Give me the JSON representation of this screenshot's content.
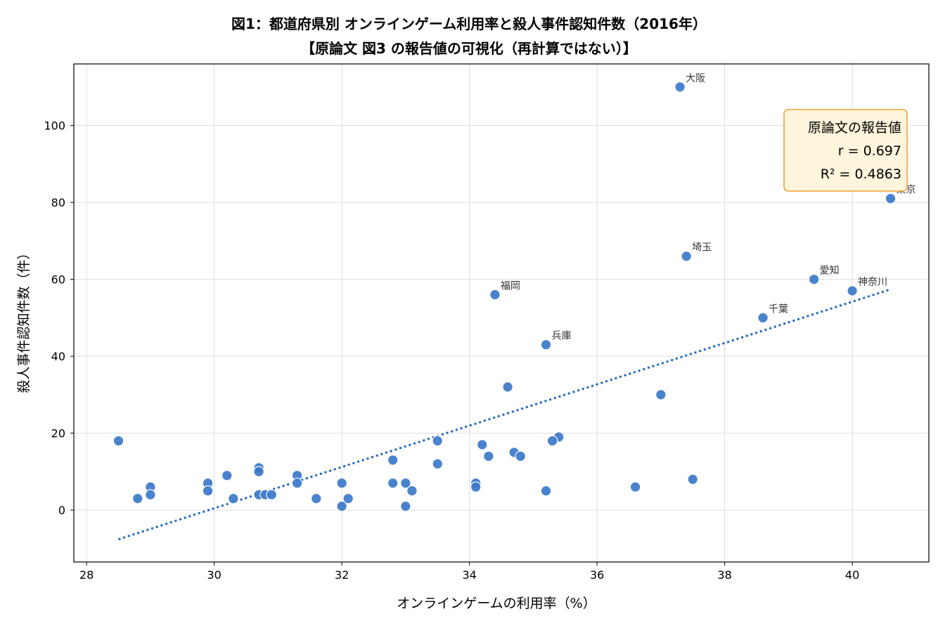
{
  "chart_data": {
    "type": "scatter",
    "title": "図1：都道府県別 オンラインゲーム利用率と殺人事件認知件数（2016年）",
    "subtitle": "【原論文 図3 の報告値の可視化（再計算ではない）】",
    "xlabel": "オンラインゲームの利用率（%）",
    "ylabel": "殺人事件認知件数（件）",
    "xlim": [
      27.8,
      41.2
    ],
    "ylim": [
      -13.5,
      116
    ],
    "xticks": [
      28,
      30,
      32,
      34,
      36,
      38,
      40
    ],
    "yticks": [
      0,
      20,
      40,
      60,
      80,
      100
    ],
    "grid": true,
    "point_color": "#3b78c9",
    "trend_color": "#1f66c1",
    "trendline": {
      "style": "dotted",
      "x": [
        28.5,
        40.6
      ],
      "y": [
        -7.6,
        57.4
      ]
    },
    "stats_box": {
      "lines": [
        "原論文の報告値",
        "r = 0.697",
        "R² = 0.4863"
      ],
      "placement": "top-right",
      "fill": "#fff5dc",
      "border": "#f0a030"
    },
    "points": [
      {
        "x": 37.3,
        "y": 110,
        "label": "大阪"
      },
      {
        "x": 40.6,
        "y": 81,
        "label": "東京"
      },
      {
        "x": 37.4,
        "y": 66,
        "label": "埼玉"
      },
      {
        "x": 39.4,
        "y": 60,
        "label": "愛知"
      },
      {
        "x": 40.0,
        "y": 57,
        "label": "神奈川"
      },
      {
        "x": 34.4,
        "y": 56,
        "label": "福岡"
      },
      {
        "x": 38.6,
        "y": 50,
        "label": "千葉"
      },
      {
        "x": 35.2,
        "y": 43,
        "label": "兵庫"
      },
      {
        "x": 34.6,
        "y": 32
      },
      {
        "x": 37.0,
        "y": 30
      },
      {
        "x": 35.4,
        "y": 19
      },
      {
        "x": 35.3,
        "y": 18
      },
      {
        "x": 33.5,
        "y": 18
      },
      {
        "x": 28.5,
        "y": 18
      },
      {
        "x": 34.2,
        "y": 17
      },
      {
        "x": 34.7,
        "y": 15
      },
      {
        "x": 34.3,
        "y": 14
      },
      {
        "x": 34.8,
        "y": 14
      },
      {
        "x": 32.8,
        "y": 13
      },
      {
        "x": 33.5,
        "y": 12
      },
      {
        "x": 30.7,
        "y": 11
      },
      {
        "x": 30.7,
        "y": 10
      },
      {
        "x": 30.2,
        "y": 9
      },
      {
        "x": 31.3,
        "y": 9
      },
      {
        "x": 37.5,
        "y": 8
      },
      {
        "x": 29.9,
        "y": 7
      },
      {
        "x": 31.3,
        "y": 7
      },
      {
        "x": 32.0,
        "y": 7
      },
      {
        "x": 32.8,
        "y": 7
      },
      {
        "x": 33.0,
        "y": 7
      },
      {
        "x": 34.1,
        "y": 7
      },
      {
        "x": 29.0,
        "y": 6
      },
      {
        "x": 34.1,
        "y": 6
      },
      {
        "x": 36.6,
        "y": 6
      },
      {
        "x": 29.9,
        "y": 5
      },
      {
        "x": 33.1,
        "y": 5
      },
      {
        "x": 35.2,
        "y": 5
      },
      {
        "x": 29.0,
        "y": 4
      },
      {
        "x": 30.7,
        "y": 4
      },
      {
        "x": 30.8,
        "y": 4
      },
      {
        "x": 30.9,
        "y": 4
      },
      {
        "x": 28.8,
        "y": 3
      },
      {
        "x": 30.3,
        "y": 3
      },
      {
        "x": 31.6,
        "y": 3
      },
      {
        "x": 32.1,
        "y": 3
      },
      {
        "x": 32.0,
        "y": 1
      },
      {
        "x": 33.0,
        "y": 1
      }
    ]
  }
}
